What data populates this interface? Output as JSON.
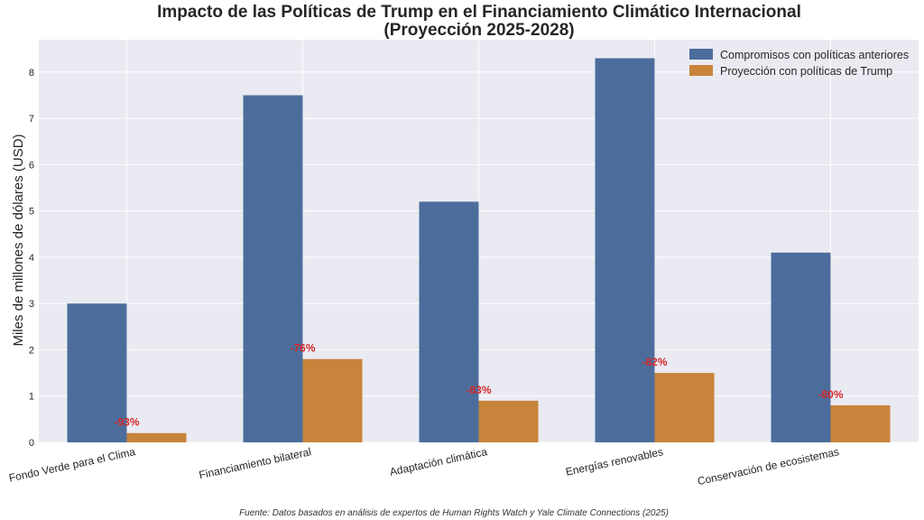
{
  "chart_data": {
    "type": "bar",
    "title_line1": "Impacto de las Políticas de Trump en el Financiamiento Climático Internacional",
    "title_line2": "(Proyección 2025-2028)",
    "ylabel": "Miles de millones de dólares (USD)",
    "xlabel": "",
    "categories": [
      "Fondo Verde para el Clima",
      "Financiamiento bilateral",
      "Adaptación climática",
      "Energías renovables",
      "Conservación de ecosistemas"
    ],
    "series": [
      {
        "name": "Compromisos con políticas anteriores",
        "color": "#4c6d9c",
        "values": [
          3.0,
          7.5,
          5.2,
          8.3,
          4.1
        ]
      },
      {
        "name": "Proyección con políticas de Trump",
        "color": "#c8843a",
        "values": [
          0.2,
          1.8,
          0.9,
          1.5,
          0.8
        ]
      }
    ],
    "change_labels": [
      "-93%",
      "-76%",
      "-83%",
      "-82%",
      "-80%"
    ],
    "change_label_color": "#d62728",
    "ylim": [
      0,
      8.7
    ],
    "yticks": [
      0,
      1,
      2,
      3,
      4,
      5,
      6,
      7,
      8
    ],
    "grid": true,
    "legend_position": "top-right",
    "background_color": "#eaeaf2"
  },
  "footer": {
    "source": "Fuente: Datos basados en análisis de expertos de Human Rights Watch y Yale Climate Connections (2025)"
  }
}
